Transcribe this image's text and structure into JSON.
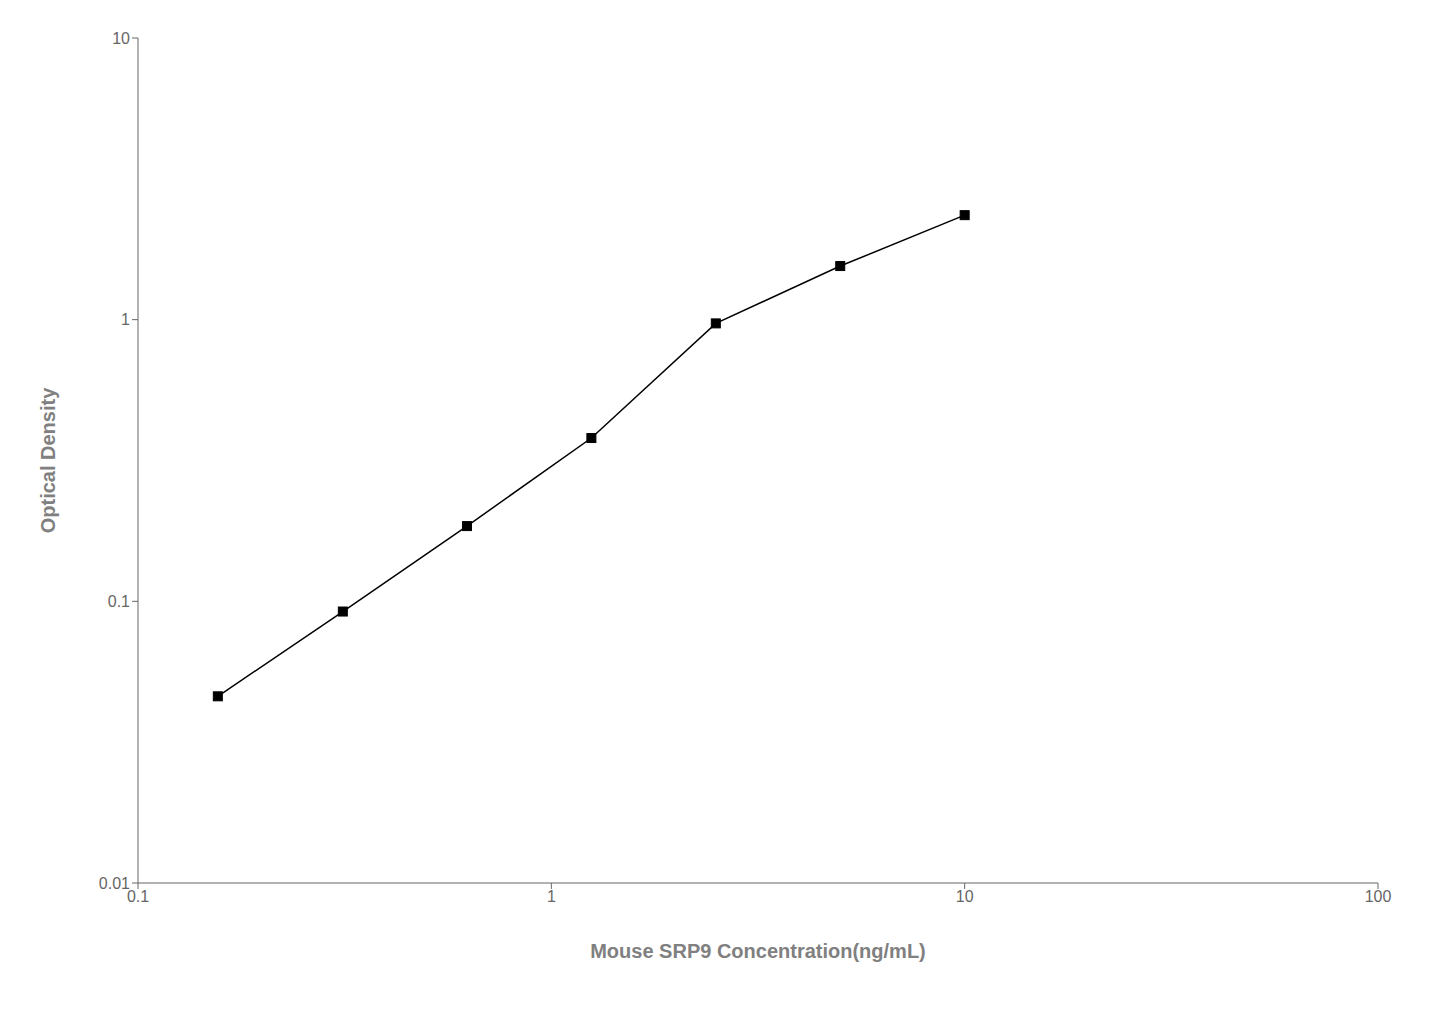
{
  "chart_data": {
    "type": "line",
    "x": [
      0.156,
      0.313,
      0.625,
      1.25,
      2.5,
      5.0,
      10.0
    ],
    "values": [
      0.046,
      0.092,
      0.185,
      0.38,
      0.97,
      1.55,
      2.35
    ],
    "xlabel": "Mouse SRP9 Concentration(ng/mL)",
    "ylabel": "Optical Density",
    "xlim": [
      0.1,
      100
    ],
    "ylim": [
      0.01,
      10
    ],
    "xticks": [
      0.1,
      1,
      10,
      100
    ],
    "yticks": [
      0.01,
      0.1,
      1,
      10
    ],
    "log": true,
    "grid": false,
    "color": "#000000",
    "marker": "square"
  }
}
